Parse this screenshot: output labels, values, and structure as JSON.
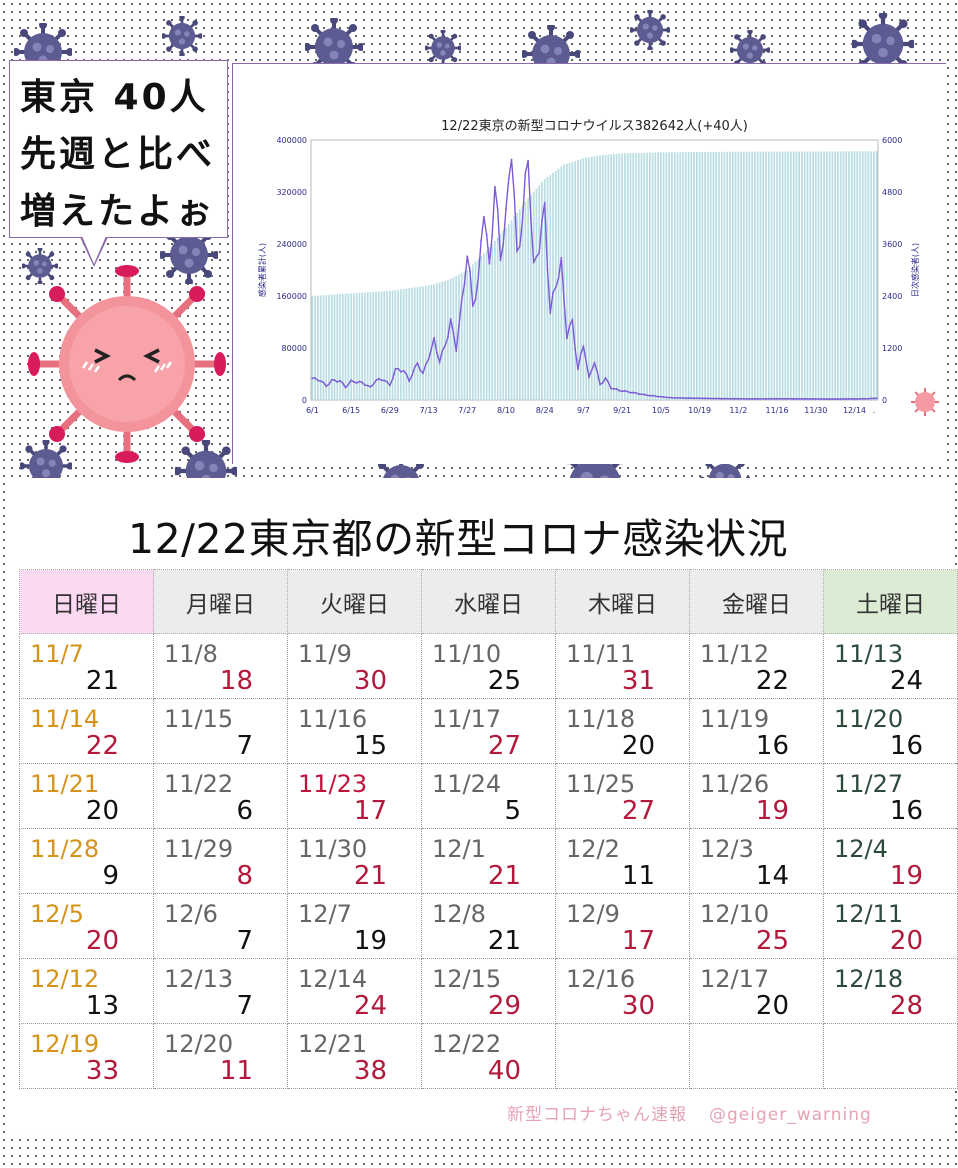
{
  "bubble": {
    "line1": "東京 40人",
    "line2": "先週と比べ",
    "line3": "増えたよぉ"
  },
  "colors": {
    "bar": "#b9dde3",
    "line": "#7b5bd6",
    "axis_text": "#2a2a8a",
    "red": "#b3193a",
    "orange": "#d59419",
    "green": "#2d4a3b",
    "sun_bg": "#fcd9f2",
    "sat_bg": "#dcebd3"
  },
  "chart_data": {
    "type": "bar",
    "title": "12/22東京の新型コロナウイルス382642人(+40人)",
    "ylabel_left": "感染者累計(人)",
    "ylabel_right": "日次感染者(人)",
    "ylim_left": [
      0,
      400000
    ],
    "ylim_right": [
      0,
      6000
    ],
    "yticks_left": [
      "400000",
      "320000",
      "240000",
      "160000",
      "80000",
      "0"
    ],
    "yticks_right": [
      "6000",
      "4800",
      "3600",
      "2400",
      "1200",
      "0"
    ],
    "xticks": [
      "6/1",
      "6/15",
      "6/29",
      "7/13",
      "7/27",
      "8/10",
      "8/24",
      "9/7",
      "9/21",
      "10/5",
      "10/19",
      "11/2",
      "11/16",
      "11/30",
      "12/14"
    ],
    "day_count": 205,
    "series": [
      {
        "name": "感染者累計",
        "type": "bar",
        "axis": "left",
        "points": [
          [
            0,
            160000
          ],
          [
            14,
            164000
          ],
          [
            28,
            168000
          ],
          [
            42,
            176000
          ],
          [
            49,
            184000
          ],
          [
            56,
            200000
          ],
          [
            63,
            230000
          ],
          [
            70,
            265000
          ],
          [
            77,
            305000
          ],
          [
            84,
            340000
          ],
          [
            91,
            362000
          ],
          [
            98,
            372000
          ],
          [
            105,
            377000
          ],
          [
            112,
            379500
          ],
          [
            126,
            381000
          ],
          [
            154,
            382000
          ],
          [
            175,
            382300
          ],
          [
            204,
            382642
          ]
        ]
      },
      {
        "name": "日次感染者",
        "type": "line",
        "axis": "right",
        "points": [
          [
            0,
            500
          ],
          [
            3,
            450
          ],
          [
            5,
            320
          ],
          [
            7,
            450
          ],
          [
            10,
            440
          ],
          [
            12,
            300
          ],
          [
            14,
            430
          ],
          [
            18,
            400
          ],
          [
            21,
            290
          ],
          [
            23,
            460
          ],
          [
            26,
            470
          ],
          [
            28,
            330
          ],
          [
            30,
            700
          ],
          [
            33,
            680
          ],
          [
            35,
            450
          ],
          [
            38,
            850
          ],
          [
            40,
            600
          ],
          [
            42,
            990
          ],
          [
            44,
            1360
          ],
          [
            46,
            900
          ],
          [
            48,
            1260
          ],
          [
            50,
            1800
          ],
          [
            52,
            1200
          ],
          [
            54,
            2200
          ],
          [
            56,
            3400
          ],
          [
            58,
            2200
          ],
          [
            60,
            2700
          ],
          [
            62,
            4500
          ],
          [
            64,
            3000
          ],
          [
            66,
            5000
          ],
          [
            68,
            3300
          ],
          [
            70,
            4200
          ],
          [
            72,
            5900
          ],
          [
            74,
            3300
          ],
          [
            76,
            4200
          ],
          [
            78,
            5700
          ],
          [
            80,
            3000
          ],
          [
            82,
            3600
          ],
          [
            84,
            4400
          ],
          [
            86,
            2000
          ],
          [
            88,
            2700
          ],
          [
            90,
            3100
          ],
          [
            92,
            1500
          ],
          [
            94,
            1800
          ],
          [
            96,
            700
          ],
          [
            98,
            1300
          ],
          [
            100,
            500
          ],
          [
            102,
            900
          ],
          [
            104,
            350
          ],
          [
            106,
            500
          ],
          [
            108,
            280
          ],
          [
            111,
            220
          ],
          [
            115,
            180
          ],
          [
            120,
            120
          ],
          [
            125,
            80
          ],
          [
            130,
            50
          ],
          [
            140,
            40
          ],
          [
            150,
            30
          ],
          [
            160,
            25
          ],
          [
            170,
            28
          ],
          [
            180,
            25
          ],
          [
            190,
            22
          ],
          [
            200,
            28
          ],
          [
            204,
            40
          ]
        ]
      }
    ]
  },
  "calendar": {
    "title": "12/22東京都の新型コロナ感染状況",
    "headers": [
      "日曜日",
      "月曜日",
      "火曜日",
      "水曜日",
      "木曜日",
      "金曜日",
      "土曜日"
    ],
    "weeks": [
      [
        {
          "d": "11/7",
          "n": "21"
        },
        {
          "d": "11/8",
          "n": "18"
        },
        {
          "d": "11/9",
          "n": "30"
        },
        {
          "d": "11/10",
          "n": "25"
        },
        {
          "d": "11/11",
          "n": "31"
        },
        {
          "d": "11/12",
          "n": "22"
        },
        {
          "d": "11/13",
          "n": "24"
        }
      ],
      [
        {
          "d": "11/14",
          "n": "22"
        },
        {
          "d": "11/15",
          "n": "7"
        },
        {
          "d": "11/16",
          "n": "15"
        },
        {
          "d": "11/17",
          "n": "27"
        },
        {
          "d": "11/18",
          "n": "20"
        },
        {
          "d": "11/19",
          "n": "16"
        },
        {
          "d": "11/20",
          "n": "16"
        }
      ],
      [
        {
          "d": "11/21",
          "n": "20"
        },
        {
          "d": "11/22",
          "n": "6"
        },
        {
          "d": "11/23",
          "n": "17"
        },
        {
          "d": "11/24",
          "n": "5"
        },
        {
          "d": "11/25",
          "n": "27"
        },
        {
          "d": "11/26",
          "n": "19"
        },
        {
          "d": "11/27",
          "n": "16"
        }
      ],
      [
        {
          "d": "11/28",
          "n": "9"
        },
        {
          "d": "11/29",
          "n": "8"
        },
        {
          "d": "11/30",
          "n": "21"
        },
        {
          "d": "12/1",
          "n": "21"
        },
        {
          "d": "12/2",
          "n": "11"
        },
        {
          "d": "12/3",
          "n": "14"
        },
        {
          "d": "12/4",
          "n": "19"
        }
      ],
      [
        {
          "d": "12/5",
          "n": "20"
        },
        {
          "d": "12/6",
          "n": "7"
        },
        {
          "d": "12/7",
          "n": "19"
        },
        {
          "d": "12/8",
          "n": "21"
        },
        {
          "d": "12/9",
          "n": "17"
        },
        {
          "d": "12/10",
          "n": "25"
        },
        {
          "d": "12/11",
          "n": "20"
        }
      ],
      [
        {
          "d": "12/12",
          "n": "13"
        },
        {
          "d": "12/13",
          "n": "7"
        },
        {
          "d": "12/14",
          "n": "24"
        },
        {
          "d": "12/15",
          "n": "29"
        },
        {
          "d": "12/16",
          "n": "30"
        },
        {
          "d": "12/17",
          "n": "20"
        },
        {
          "d": "12/18",
          "n": "28"
        }
      ],
      [
        {
          "d": "12/19",
          "n": "33"
        },
        {
          "d": "12/20",
          "n": "11"
        },
        {
          "d": "12/21",
          "n": "38"
        },
        {
          "d": "12/22",
          "n": "40"
        },
        {
          "d": "",
          "n": ""
        },
        {
          "d": "",
          "n": ""
        },
        {
          "d": "",
          "n": ""
        }
      ]
    ]
  },
  "credit": {
    "left": "新型コロナちゃん速報",
    "right": "@geiger_warning"
  }
}
